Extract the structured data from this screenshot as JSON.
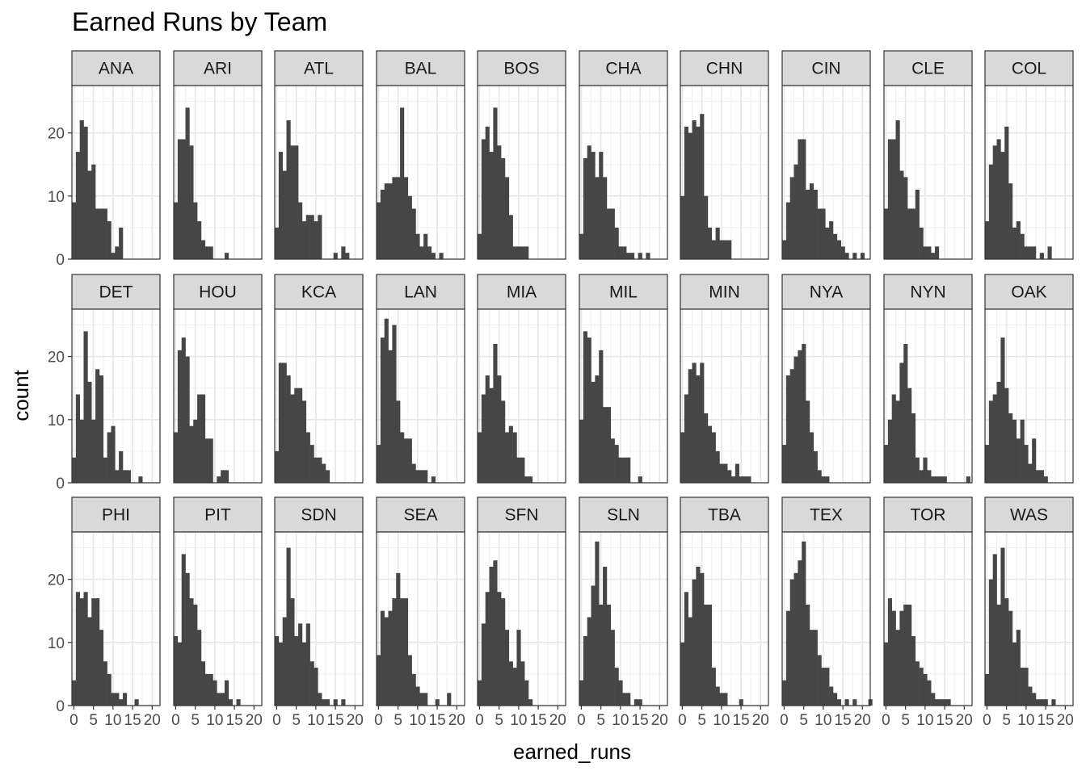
{
  "chart_data": {
    "type": "bar",
    "subtype": "faceted-histogram",
    "title": "Earned Runs by Team",
    "xlabel": "earned_runs",
    "ylabel": "count",
    "xlim": [
      -0.5,
      22
    ],
    "ylim": [
      0,
      27.5
    ],
    "xticks": [
      0,
      5,
      10,
      15,
      20
    ],
    "xtick_labels": [
      "0",
      "5",
      "10",
      "15",
      "20"
    ],
    "yticks": [
      0,
      10,
      20
    ],
    "ytick_labels": [
      "0",
      "10",
      "20"
    ],
    "grid": true,
    "bar_color": "#464646",
    "bin_width": 1,
    "bin_start": -0.5,
    "facet_rows": 3,
    "facet_cols": 10,
    "facets": [
      {
        "team": "ANA",
        "counts": [
          9,
          17,
          22,
          21,
          14,
          15,
          8,
          8,
          8,
          6,
          1,
          2,
          5
        ]
      },
      {
        "team": "ARI",
        "counts": [
          9,
          19,
          19,
          24,
          18,
          9,
          6,
          3,
          2,
          2,
          0,
          0,
          0,
          1
        ]
      },
      {
        "team": "ATL",
        "counts": [
          5,
          17,
          14,
          22,
          18,
          18,
          9,
          6,
          7,
          7,
          6,
          7,
          0,
          0,
          0,
          1,
          0,
          2,
          1
        ]
      },
      {
        "team": "BAL",
        "counts": [
          9,
          11,
          12,
          12,
          13,
          13,
          24,
          13,
          10,
          8,
          4,
          2,
          4,
          2,
          1,
          0,
          1
        ]
      },
      {
        "team": "BOS",
        "counts": [
          4,
          19,
          21,
          17,
          24,
          18,
          16,
          13,
          7,
          2,
          2,
          2,
          2
        ]
      },
      {
        "team": "CHA",
        "counts": [
          4,
          16,
          18,
          17,
          13,
          17,
          13,
          8,
          8,
          5,
          2,
          2,
          1,
          1,
          0,
          1,
          0,
          1
        ]
      },
      {
        "team": "CHN",
        "counts": [
          10,
          21,
          20,
          22,
          21,
          23,
          10,
          5,
          3,
          5,
          3,
          3,
          3
        ]
      },
      {
        "team": "CIN",
        "counts": [
          3,
          9,
          13,
          15,
          19,
          19,
          11,
          12,
          11,
          8,
          8,
          5,
          6,
          4,
          3,
          2,
          1,
          0,
          1,
          0,
          1
        ]
      },
      {
        "team": "CLE",
        "counts": [
          8,
          19,
          19,
          22,
          14,
          13,
          8,
          8,
          11,
          5,
          2,
          2,
          1,
          2
        ]
      },
      {
        "team": "COL",
        "counts": [
          6,
          15,
          18,
          19,
          17,
          21,
          12,
          5,
          6,
          4,
          2,
          2,
          2,
          0,
          1,
          0,
          2
        ]
      },
      {
        "team": "DET",
        "counts": [
          4,
          14,
          10,
          24,
          16,
          10,
          18,
          17,
          4,
          8,
          9,
          2,
          5,
          2,
          2,
          0,
          0,
          1
        ]
      },
      {
        "team": "HOU",
        "counts": [
          8,
          21,
          23,
          20,
          9,
          10,
          14,
          14,
          7,
          7,
          0,
          1,
          2,
          2
        ]
      },
      {
        "team": "KCA",
        "counts": [
          5,
          19,
          19,
          17,
          14,
          15,
          15,
          13,
          8,
          6,
          4,
          4,
          3,
          2
        ]
      },
      {
        "team": "LAN",
        "counts": [
          6,
          23,
          26,
          21,
          25,
          13,
          8,
          7,
          7,
          3,
          2,
          2,
          2,
          0,
          1
        ]
      },
      {
        "team": "MIA",
        "counts": [
          8,
          14,
          17,
          15,
          22,
          17,
          13,
          8,
          9,
          8,
          4,
          4,
          1,
          1
        ]
      },
      {
        "team": "MIL",
        "counts": [
          10,
          24,
          23,
          16,
          17,
          21,
          12,
          12,
          7,
          6,
          4,
          4,
          4,
          0,
          0,
          1
        ]
      },
      {
        "team": "MIN",
        "counts": [
          8,
          14,
          18,
          19,
          17,
          19,
          11,
          9,
          8,
          5,
          3,
          3,
          2,
          1,
          3,
          1,
          1,
          1
        ]
      },
      {
        "team": "NYA",
        "counts": [
          6,
          17,
          18,
          20,
          21,
          22,
          13,
          8,
          5,
          2,
          1,
          1
        ]
      },
      {
        "team": "NYN",
        "counts": [
          6,
          10,
          14,
          13,
          19,
          22,
          15,
          11,
          4,
          2,
          4,
          2,
          1,
          1,
          1,
          1,
          0,
          0,
          0,
          0,
          0,
          1
        ]
      },
      {
        "team": "OAK",
        "counts": [
          6,
          13,
          14,
          16,
          23,
          15,
          11,
          10,
          7,
          10,
          6,
          3,
          7,
          2,
          2,
          1
        ]
      },
      {
        "team": "PHI",
        "counts": [
          4,
          18,
          17,
          18,
          14,
          17,
          17,
          12,
          7,
          5,
          2,
          2,
          1,
          2,
          0,
          0,
          1
        ]
      },
      {
        "team": "PIT",
        "counts": [
          11,
          10,
          24,
          21,
          17,
          16,
          12,
          7,
          5,
          5,
          4,
          2,
          2,
          4,
          1,
          0,
          1
        ]
      },
      {
        "team": "SDN",
        "counts": [
          11,
          10,
          14,
          25,
          17,
          11,
          13,
          10,
          13,
          7,
          6,
          2,
          1,
          1,
          0,
          1,
          0,
          1
        ]
      },
      {
        "team": "SEA",
        "counts": [
          8,
          15,
          14,
          15,
          17,
          21,
          17,
          17,
          8,
          5,
          3,
          2,
          2,
          0,
          0,
          1,
          0,
          0,
          2
        ]
      },
      {
        "team": "SFN",
        "counts": [
          4,
          13,
          18,
          22,
          23,
          18,
          17,
          12,
          7,
          6,
          12,
          7,
          4,
          1
        ]
      },
      {
        "team": "SLN",
        "counts": [
          4,
          11,
          14,
          19,
          26,
          16,
          22,
          16,
          12,
          6,
          4,
          2,
          2,
          0,
          1,
          1
        ]
      },
      {
        "team": "TBA",
        "counts": [
          10,
          18,
          14,
          20,
          22,
          21,
          16,
          16,
          6,
          3,
          2,
          2,
          0,
          0,
          0,
          1
        ]
      },
      {
        "team": "TEX",
        "counts": [
          4,
          15,
          20,
          21,
          23,
          26,
          16,
          12,
          12,
          8,
          6,
          6,
          3,
          2,
          1,
          0,
          1,
          0,
          1,
          0,
          0,
          0,
          1
        ]
      },
      {
        "team": "TOR",
        "counts": [
          10,
          17,
          15,
          12,
          15,
          16,
          16,
          11,
          7,
          6,
          5,
          4,
          2,
          1,
          1,
          1,
          1
        ]
      },
      {
        "team": "WAS",
        "counts": [
          5,
          20,
          24,
          16,
          25,
          17,
          15,
          10,
          12,
          6,
          6,
          3,
          2,
          1,
          1,
          1,
          0,
          1
        ]
      }
    ]
  }
}
